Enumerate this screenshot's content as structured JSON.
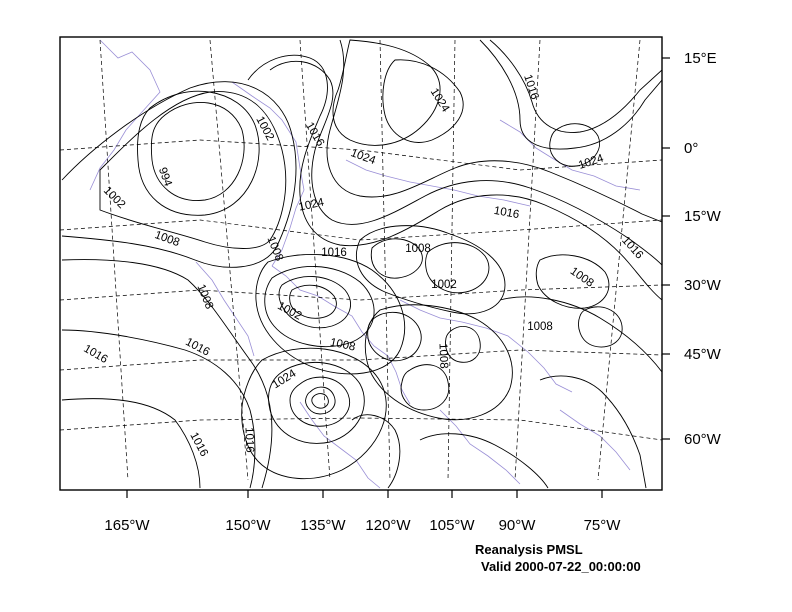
{
  "map": {
    "title": "Reanalysis PMSL",
    "valid": "Valid 2000-07-22_00:00:00",
    "lon_labels": [
      "165°W",
      "150°W",
      "135°W",
      "120°W",
      "105°W",
      "90°W",
      "75°W"
    ],
    "lat_labels": [
      "15°E",
      "0°",
      "15°W",
      "30°W",
      "45°W",
      "60°W"
    ],
    "contour_labels": [
      "1002",
      "1016",
      "1024",
      "1016",
      "1024",
      "994",
      "1002",
      "1024",
      "1016",
      "1024",
      "1008",
      "1008",
      "1016",
      "1008",
      "1016",
      "1002",
      "1008",
      "1008",
      "1002",
      "1008",
      "1008",
      "1016",
      "1016",
      "1008",
      "1024",
      "1016",
      "1016"
    ],
    "colors": {
      "contour": "#000000",
      "coastline": "#9a8fd6",
      "grid": "#000000"
    }
  }
}
